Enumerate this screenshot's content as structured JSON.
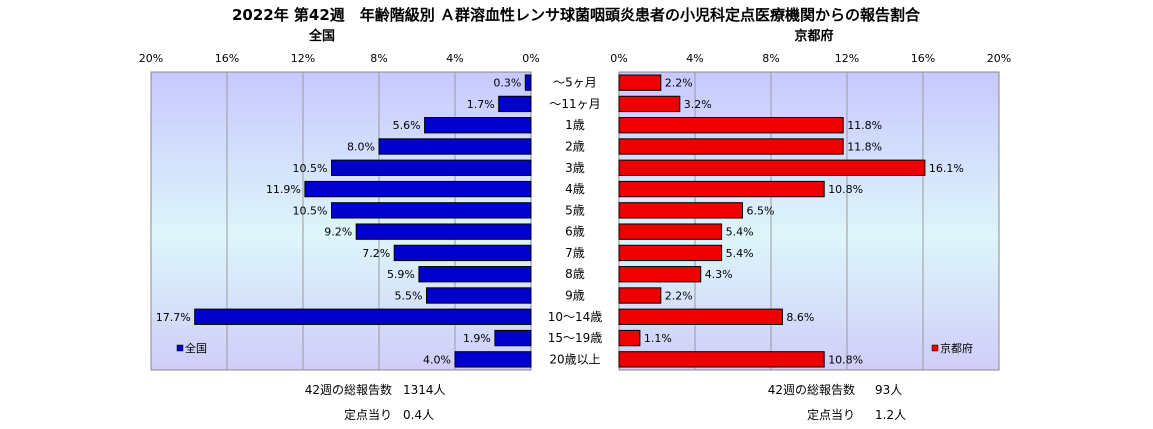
{
  "title": "2022年 第42週　年齢階級別 Ａ群溶血性レンサ球菌咽頭炎患者の小児科定点医療機関からの報告割合",
  "chart_data": [
    {
      "type": "bar",
      "panel": "全国",
      "title": "全国",
      "orientation": "horizontal",
      "direction": "right-to-left",
      "xlim": [
        0,
        20
      ],
      "x_ticks": [
        "20%",
        "16%",
        "12%",
        "8%",
        "4%",
        "0%"
      ],
      "categories": [
        "～5ヶ月",
        "～11ヶ月",
        "1歳",
        "2歳",
        "3歳",
        "4歳",
        "5歳",
        "6歳",
        "7歳",
        "8歳",
        "9歳",
        "10～14歳",
        "15～19歳",
        "20歳以上"
      ],
      "series": [
        {
          "name": "全国",
          "color": "#0000cc",
          "values": [
            0.3,
            1.7,
            5.6,
            8.0,
            10.5,
            11.9,
            10.5,
            9.2,
            7.2,
            5.9,
            5.5,
            17.7,
            1.9,
            4.0
          ],
          "labels": [
            "0.3%",
            "1.7%",
            "5.6%",
            "8.0%",
            "10.5%",
            "11.9%",
            "10.5%",
            "9.2%",
            "7.2%",
            "5.9%",
            "5.5%",
            "17.7%",
            "1.9%",
            "4.0%"
          ]
        }
      ],
      "legend": "bottom-left",
      "grid": true
    },
    {
      "type": "bar",
      "panel": "京都府",
      "title": "京都府",
      "orientation": "horizontal",
      "direction": "left-to-right",
      "xlim": [
        0,
        20
      ],
      "x_ticks": [
        "0%",
        "4%",
        "8%",
        "12%",
        "16%",
        "20%"
      ],
      "categories": [
        "～5ヶ月",
        "～11ヶ月",
        "1歳",
        "2歳",
        "3歳",
        "4歳",
        "5歳",
        "6歳",
        "7歳",
        "8歳",
        "9歳",
        "10～14歳",
        "15～19歳",
        "20歳以上"
      ],
      "series": [
        {
          "name": "京都府",
          "color": "#ee0000",
          "values": [
            2.2,
            3.2,
            11.8,
            11.8,
            16.1,
            10.8,
            6.5,
            5.4,
            5.4,
            4.3,
            2.2,
            8.6,
            1.1,
            10.8
          ],
          "labels": [
            "2.2%",
            "3.2%",
            "11.8%",
            "11.8%",
            "16.1%",
            "10.8%",
            "6.5%",
            "5.4%",
            "5.4%",
            "4.3%",
            "2.2%",
            "8.6%",
            "1.1%",
            "10.8%"
          ]
        }
      ],
      "legend": "bottom-right",
      "grid": true
    }
  ],
  "footer": {
    "national": {
      "total_label": "42週の総報告数",
      "total_value": "1314人",
      "per_site_label": "定点当り",
      "per_site_value": "0.4人"
    },
    "kyoto": {
      "total_label": "42週の総報告数",
      "total_value": "93人",
      "per_site_label": "定点当り",
      "per_site_value": "1.2人"
    }
  }
}
